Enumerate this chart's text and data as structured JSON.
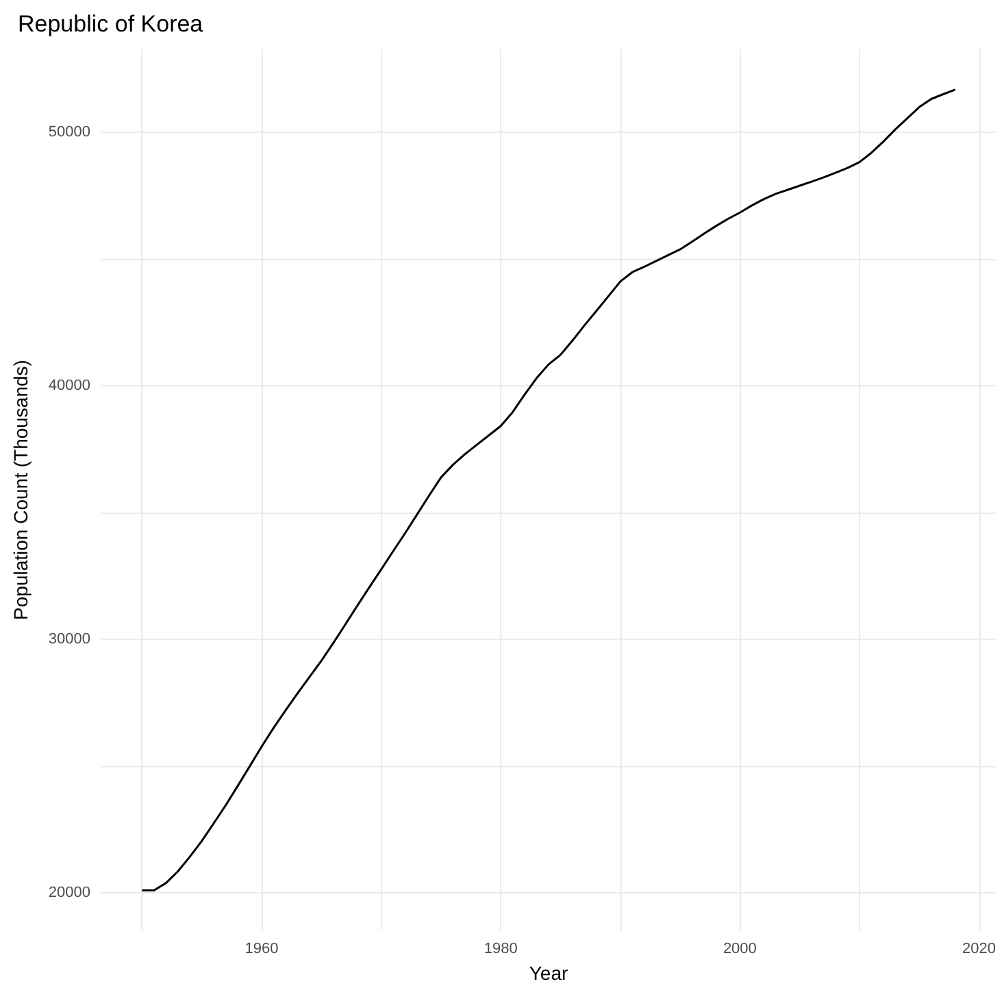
{
  "chart_data": {
    "type": "line",
    "title": "Republic of Korea",
    "xlabel": "Year",
    "ylabel": "Population Count (Thousands)",
    "x": [
      1950,
      1951,
      1952,
      1953,
      1954,
      1955,
      1956,
      1957,
      1958,
      1959,
      1960,
      1961,
      1962,
      1963,
      1964,
      1965,
      1966,
      1967,
      1968,
      1969,
      1970,
      1971,
      1972,
      1973,
      1974,
      1975,
      1976,
      1977,
      1978,
      1979,
      1980,
      1981,
      1982,
      1983,
      1984,
      1985,
      1986,
      1987,
      1988,
      1989,
      1990,
      1991,
      1992,
      1993,
      1994,
      1995,
      1996,
      1997,
      1998,
      1999,
      2000,
      2001,
      2002,
      2003,
      2004,
      2005,
      2006,
      2007,
      2008,
      2009,
      2010,
      2011,
      2012,
      2013,
      2014,
      2015,
      2016,
      2017,
      2018
    ],
    "series": [
      {
        "color": "#000000",
        "values": [
          20100,
          20100,
          20390,
          20850,
          21430,
          22050,
          22750,
          23460,
          24220,
          24990,
          25770,
          26510,
          27200,
          27870,
          28520,
          29160,
          29860,
          30590,
          31330,
          32050,
          32760,
          33480,
          34190,
          34930,
          35670,
          36390,
          36890,
          37310,
          37680,
          38050,
          38420,
          38970,
          39660,
          40310,
          40850,
          41230,
          41790,
          42390,
          42960,
          43540,
          44120,
          44490,
          44700,
          44930,
          45160,
          45390,
          45690,
          46010,
          46310,
          46590,
          46840,
          47120,
          47370,
          47580,
          47740,
          47900,
          48060,
          48230,
          48410,
          48600,
          48830,
          49200,
          49640,
          50120,
          50560,
          51000,
          51320,
          51510,
          51690
        ]
      }
    ],
    "xlim": [
      1946.6,
      2021.4
    ],
    "xticks": [
      {
        "value": 1950,
        "label": null
      },
      1960,
      {
        "value": 1970,
        "label": null
      },
      1980,
      {
        "value": 1990,
        "label": null
      },
      2000,
      {
        "value": 2010,
        "label": null
      },
      2020
    ],
    "ylim": [
      18520,
      53280
    ],
    "yticks": [
      20000,
      {
        "value": 25000,
        "label": null
      },
      30000,
      {
        "value": 35000,
        "label": null
      },
      40000,
      {
        "value": 45000,
        "label": null
      },
      50000
    ],
    "grid": true,
    "line_style": "solid"
  }
}
